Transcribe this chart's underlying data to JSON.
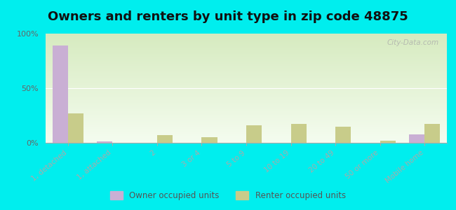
{
  "title": "Owners and renters by unit type in zip code 48875",
  "categories": [
    "1, detached",
    "1, attached",
    "2",
    "3 or 4",
    "5 to 9",
    "10 to 19",
    "20 to 49",
    "50 or more",
    "Mobile home"
  ],
  "owner_values": [
    89,
    1,
    0,
    0,
    0,
    0,
    0,
    0,
    8
  ],
  "renter_values": [
    27,
    0,
    7,
    5,
    16,
    17,
    15,
    2,
    17
  ],
  "owner_color": "#c9afd4",
  "renter_color": "#c8cc8a",
  "background_color": "#00eeee",
  "ylim": [
    0,
    100
  ],
  "yticks": [
    0,
    50,
    100
  ],
  "ytick_labels": [
    "0%",
    "50%",
    "100%"
  ],
  "legend_owner": "Owner occupied units",
  "legend_renter": "Renter occupied units",
  "title_fontsize": 13,
  "watermark": "City-Data.com"
}
